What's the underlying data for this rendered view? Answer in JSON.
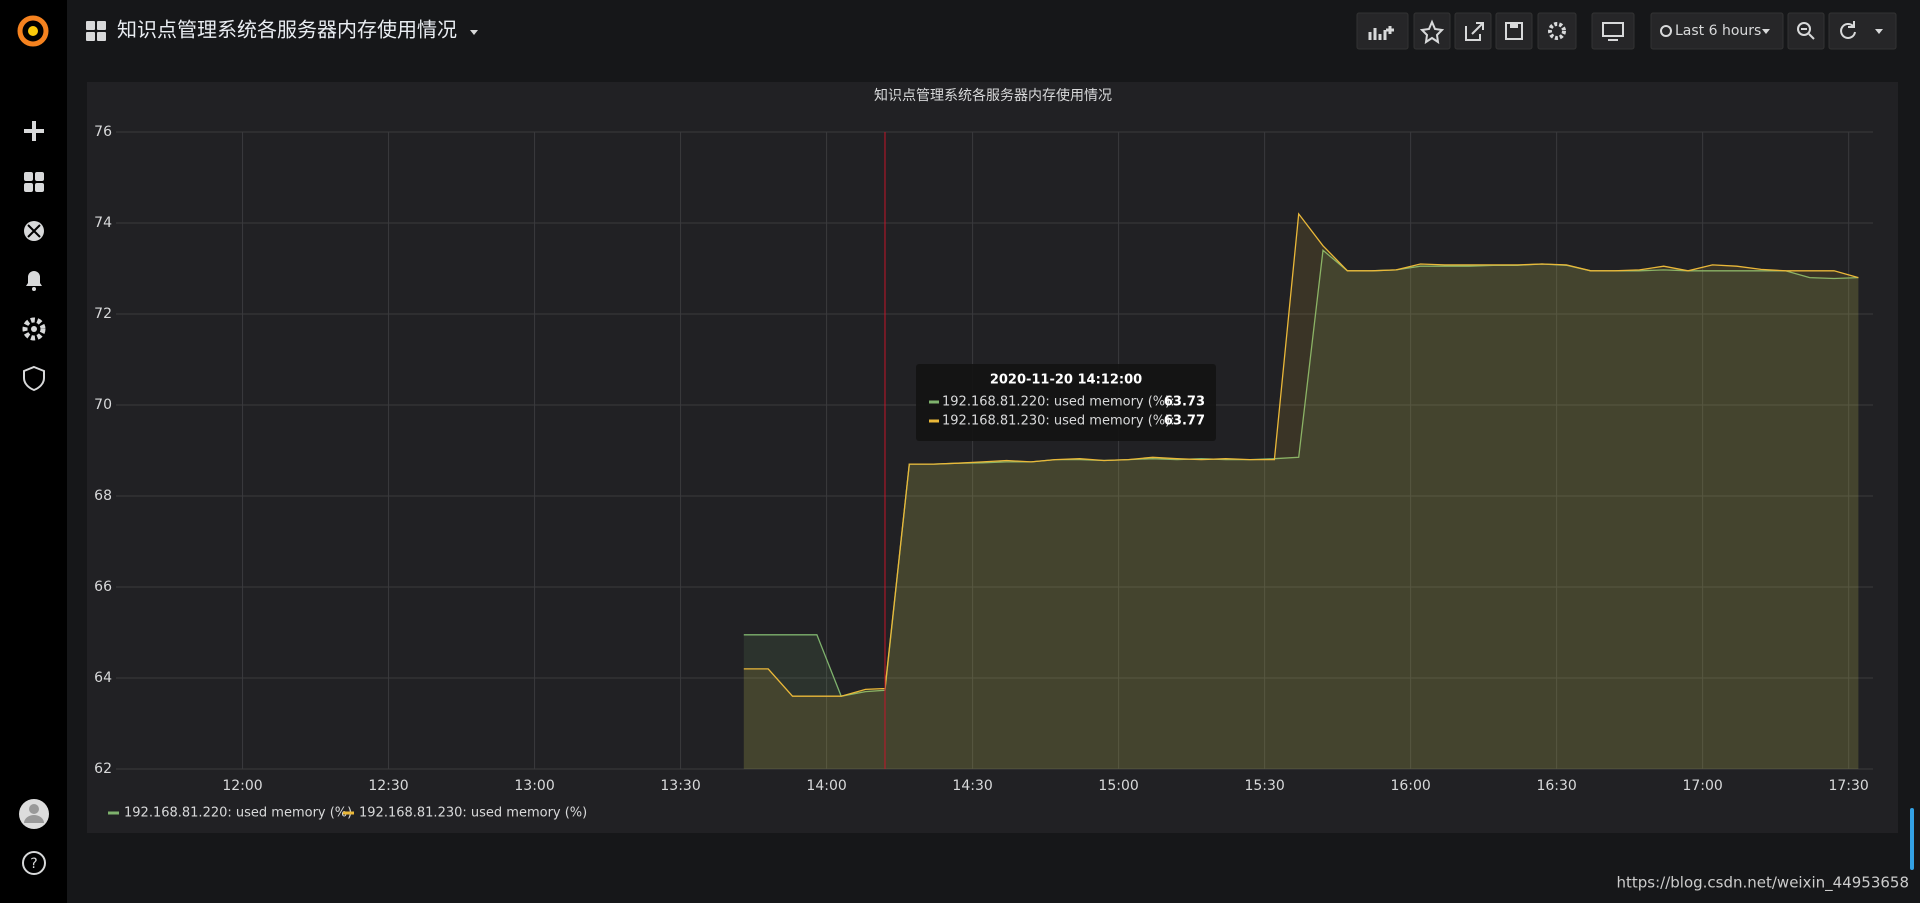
{
  "nav": {
    "dashboard_title": "知识点管理系统各服务器内存使用情况",
    "time_range": "Last 6 hours"
  },
  "chart_data": {
    "type": "line",
    "title": "知识点管理系统各服务器内存使用情况",
    "x": [
      "13:43",
      "13:48",
      "13:53",
      "13:58",
      "14:03",
      "14:08",
      "14:12",
      "14:17",
      "14:22",
      "14:27",
      "14:32",
      "14:37",
      "14:42",
      "14:47",
      "14:52",
      "14:57",
      "15:02",
      "15:07",
      "15:12",
      "15:17",
      "15:22",
      "15:27",
      "15:32",
      "15:37",
      "15:42",
      "15:47",
      "15:52",
      "15:57",
      "16:02",
      "16:07",
      "16:12",
      "16:17",
      "16:22",
      "16:27",
      "16:32",
      "16:37",
      "16:42",
      "16:47",
      "16:52",
      "16:57",
      "17:02",
      "17:07",
      "17:12",
      "17:17",
      "17:22",
      "17:27",
      "17:32"
    ],
    "series": [
      {
        "name": "192.168.81.220: used memory (%)",
        "color": "#7eb26d",
        "values": [
          64.95,
          64.95,
          64.95,
          64.95,
          63.6,
          63.7,
          63.73,
          68.7,
          68.7,
          68.72,
          68.73,
          68.75,
          68.75,
          68.8,
          68.8,
          68.78,
          68.8,
          68.82,
          68.8,
          68.82,
          68.8,
          68.8,
          68.82,
          68.85,
          73.4,
          72.95,
          72.95,
          72.97,
          73.05,
          73.05,
          73.05,
          73.07,
          73.07,
          73.1,
          73.07,
          72.95,
          72.95,
          72.95,
          72.97,
          72.95,
          72.95,
          72.95,
          72.95,
          72.95,
          72.8,
          72.78,
          72.8
        ]
      },
      {
        "name": "192.168.81.230: used memory (%)",
        "color": "#eab839",
        "values": [
          64.2,
          64.2,
          63.6,
          63.6,
          63.6,
          63.75,
          63.77,
          68.7,
          68.7,
          68.72,
          68.75,
          68.78,
          68.75,
          68.8,
          68.82,
          68.78,
          68.8,
          68.85,
          68.82,
          68.8,
          68.82,
          68.8,
          68.8,
          74.2,
          73.5,
          72.95,
          72.95,
          72.97,
          73.1,
          73.08,
          73.08,
          73.08,
          73.08,
          73.1,
          73.08,
          72.95,
          72.95,
          72.97,
          73.05,
          72.95,
          73.08,
          73.05,
          72.98,
          72.95,
          72.95,
          72.95,
          72.8
        ]
      }
    ],
    "xlim": [
      "11:34",
      "17:35"
    ],
    "xticks": [
      "12:00",
      "12:30",
      "13:00",
      "13:30",
      "14:00",
      "14:30",
      "15:00",
      "15:30",
      "16:00",
      "16:30",
      "17:00",
      "17:30"
    ],
    "ylim": [
      62,
      76
    ],
    "yticks": [
      62,
      64,
      66,
      68,
      70,
      72,
      74,
      76
    ],
    "grid": true
  },
  "tooltip": {
    "title": "2020-11-20 14:12:00",
    "items": [
      {
        "label": "192.168.81.220: used memory (%):",
        "value": "63.73"
      },
      {
        "label": "192.168.81.230: used memory (%):",
        "value": "63.77"
      }
    ]
  },
  "watermark": "https://blog.csdn.net/weixin_44953658"
}
